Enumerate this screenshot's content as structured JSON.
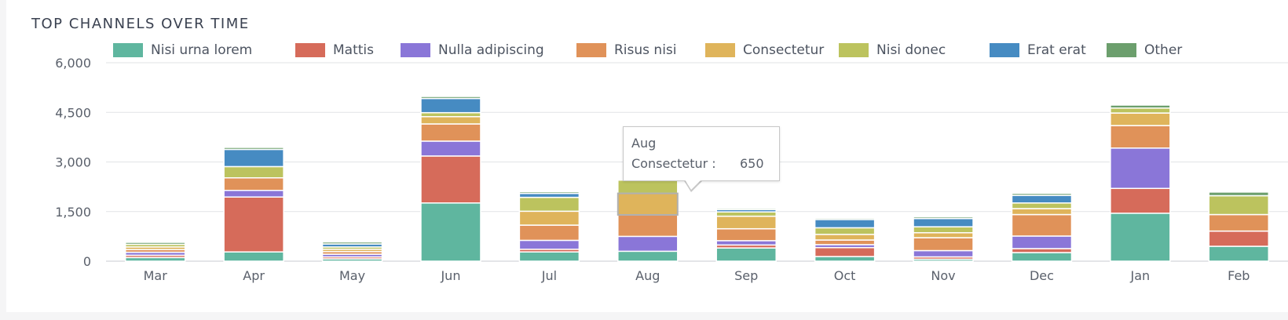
{
  "title": "TOP CHANNELS OVER TIME",
  "tooltip": {
    "month": "Aug",
    "series": "Consectetur :",
    "value": "650"
  },
  "chart_data": {
    "type": "bar",
    "stacked": true,
    "title": "TOP CHANNELS OVER TIME",
    "categories": [
      "Mar",
      "Apr",
      "May",
      "Jun",
      "Jul",
      "Aug",
      "Sep",
      "Oct",
      "Nov",
      "Dec",
      "Jan",
      "Feb"
    ],
    "ylim": [
      0,
      6000
    ],
    "yticks": [
      0,
      1500,
      3000,
      4500,
      6000
    ],
    "ytick_labels": [
      "0",
      "1,500",
      "3,000",
      "4,500",
      "6,000"
    ],
    "grid": true,
    "legend_position": "top",
    "series": [
      {
        "name": "Nisi urna lorem",
        "color": "#5fb69f",
        "values": [
          110,
          280,
          70,
          1760,
          280,
          300,
          400,
          140,
          60,
          260,
          1450,
          450
        ]
      },
      {
        "name": "Mattis",
        "color": "#d66b5a",
        "values": [
          70,
          1660,
          60,
          1420,
          80,
          0,
          90,
          270,
          70,
          120,
          750,
          460
        ]
      },
      {
        "name": "Nulla adipiscing",
        "color": "#8a76d8",
        "values": [
          90,
          200,
          80,
          450,
          270,
          450,
          130,
          90,
          190,
          380,
          1220,
          0
        ]
      },
      {
        "name": "Risus nisi",
        "color": "#e09259",
        "values": [
          80,
          380,
          80,
          520,
          460,
          650,
          360,
          140,
          390,
          650,
          680,
          500
        ]
      },
      {
        "name": "Consectetur",
        "color": "#dfb45b",
        "values": [
          80,
          0,
          70,
          220,
          420,
          650,
          380,
          170,
          150,
          180,
          380,
          0
        ]
      },
      {
        "name": "Nisi donec",
        "color": "#bcc35e",
        "values": [
          80,
          340,
          70,
          120,
          420,
          400,
          130,
          200,
          180,
          170,
          150,
          570
        ]
      },
      {
        "name": "Erat erat",
        "color": "#468bc2",
        "values": [
          0,
          520,
          90,
          430,
          120,
          0,
          70,
          250,
          250,
          230,
          0,
          0
        ]
      },
      {
        "name": "Other",
        "color": "#6c9f6d",
        "values": [
          60,
          60,
          60,
          60,
          50,
          0,
          40,
          40,
          50,
          60,
          90,
          110
        ]
      }
    ]
  }
}
